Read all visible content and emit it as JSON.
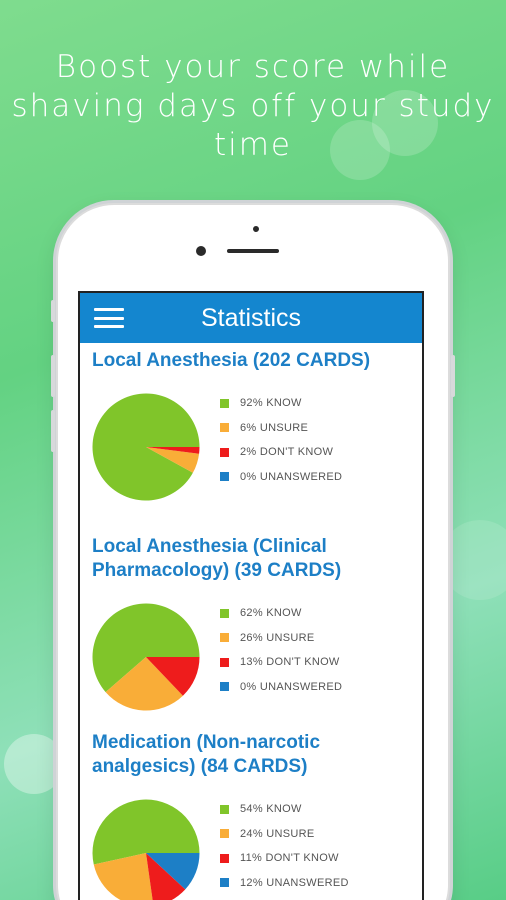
{
  "headline": "Boost your score while shaving days off your study time",
  "app": {
    "title": "Statistics",
    "menu_icon": "hamburger-menu-icon"
  },
  "colors": {
    "know": "#80c52a",
    "unsure": "#f9ad38",
    "dont_know": "#ee1c1c",
    "unanswered": "#1d7fc6",
    "appbar": "#1486cf",
    "title_text": "#1d7fc6"
  },
  "sections": [
    {
      "title_lines": [
        "Local Anesthesia (202 CARDS)"
      ],
      "legend": [
        "92% KNOW",
        "6% UNSURE",
        "2% DON'T KNOW",
        "0% UNANSWERED"
      ],
      "chart_data": {
        "type": "pie",
        "categories": [
          "KNOW",
          "UNSURE",
          "DON'T KNOW",
          "UNANSWERED"
        ],
        "values": [
          92,
          6,
          2,
          0
        ]
      }
    },
    {
      "title_lines": [
        "Local Anesthesia (Clinical",
        "Pharmacology) (39 CARDS)"
      ],
      "legend": [
        "62% KNOW",
        "26% UNSURE",
        "13% DON'T KNOW",
        "0% UNANSWERED"
      ],
      "chart_data": {
        "type": "pie",
        "categories": [
          "KNOW",
          "UNSURE",
          "DON'T KNOW",
          "UNANSWERED"
        ],
        "values": [
          62,
          26,
          13,
          0
        ]
      }
    },
    {
      "title_lines": [
        "Medication (Non-narcotic",
        "analgesics) (84 CARDS)"
      ],
      "legend": [
        "54% KNOW",
        "24% UNSURE",
        "11% DON'T KNOW",
        "12% UNANSWERED"
      ],
      "chart_data": {
        "type": "pie",
        "categories": [
          "KNOW",
          "UNSURE",
          "DON'T KNOW",
          "UNANSWERED"
        ],
        "values": [
          54,
          24,
          11,
          12
        ]
      }
    }
  ]
}
